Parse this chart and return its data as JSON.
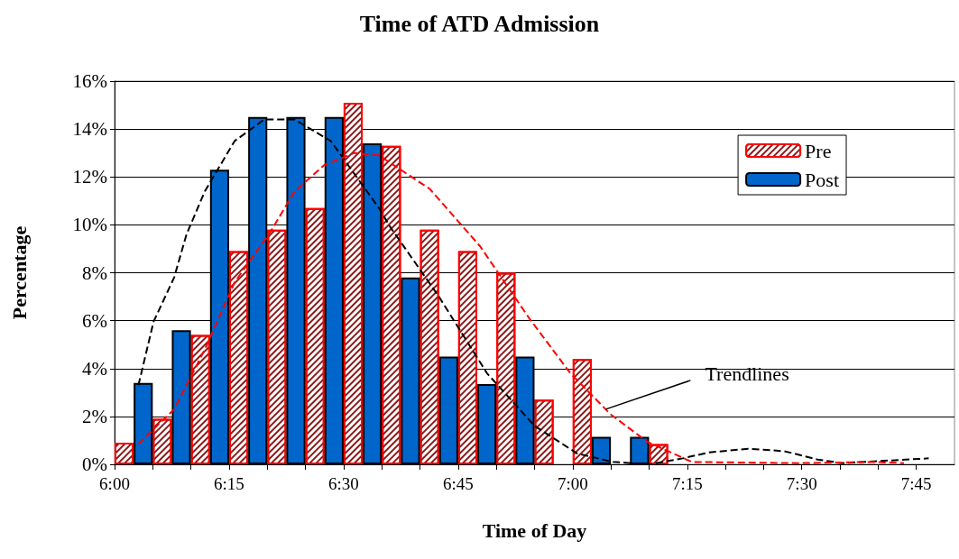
{
  "chart_data": {
    "type": "bar",
    "title": "Time of ATD Admission",
    "xlabel": "Time of Day",
    "ylabel": "Percentage",
    "xlim": [
      6,
      7.8333
    ],
    "xticks": [
      {
        "value": 6,
        "label": "6:00"
      },
      {
        "value": 6.0833,
        "label": null
      },
      {
        "value": 6.1667,
        "label": null
      },
      {
        "value": 6.25,
        "label": "6:15"
      },
      {
        "value": 6.3333,
        "label": null
      },
      {
        "value": 6.4167,
        "label": null
      },
      {
        "value": 6.5,
        "label": "6:30"
      },
      {
        "value": 6.5833,
        "label": null
      },
      {
        "value": 6.6667,
        "label": null
      },
      {
        "value": 6.75,
        "label": "6:45"
      },
      {
        "value": 6.8333,
        "label": null
      },
      {
        "value": 6.9167,
        "label": null
      },
      {
        "value": 7,
        "label": "7:00"
      },
      {
        "value": 7.0833,
        "label": null
      },
      {
        "value": 7.1667,
        "label": null
      },
      {
        "value": 7.25,
        "label": "7:15"
      },
      {
        "value": 7.3333,
        "label": null
      },
      {
        "value": 7.4167,
        "label": null
      },
      {
        "value": 7.5,
        "label": "7:30"
      },
      {
        "value": 7.5833,
        "label": null
      },
      {
        "value": 7.6667,
        "label": null
      },
      {
        "value": 7.75,
        "label": "7:45"
      }
    ],
    "ylim": [
      0,
      16
    ],
    "yticks": [
      {
        "value": 0,
        "label": "0%"
      },
      {
        "value": 2,
        "label": "2%"
      },
      {
        "value": 4,
        "label": "4%"
      },
      {
        "value": 6,
        "label": "6%"
      },
      {
        "value": 8,
        "label": "8%"
      },
      {
        "value": 10,
        "label": "10%"
      },
      {
        "value": 12,
        "label": "12%"
      },
      {
        "value": 14,
        "label": "14%"
      },
      {
        "value": 16,
        "label": "16%"
      }
    ],
    "grid": "y",
    "legend": "top right",
    "line_style": "dashed",
    "marker": "none",
    "series": [
      {
        "name": "Pre",
        "color": "#ff0000",
        "x": [
          6.0208,
          6.1042,
          6.1875,
          6.2708,
          6.3542,
          6.4375,
          6.5208,
          6.6042,
          6.6875,
          6.7708,
          6.8542,
          6.9375,
          7.0208,
          7.1875
        ],
        "values": [
          0.9,
          1.9,
          5.4,
          8.9,
          9.8,
          10.7,
          15.1,
          13.3,
          9.8,
          8.9,
          8.0,
          2.7,
          4.4,
          0.85
        ]
      },
      {
        "name": "Post",
        "color": "#0066cc",
        "x": [
          6.0625,
          6.1458,
          6.2292,
          6.3125,
          6.3958,
          6.4792,
          6.5625,
          6.6458,
          6.7292,
          6.8125,
          6.8958,
          7.0625,
          7.1458
        ],
        "values": [
          3.4,
          5.6,
          12.3,
          14.5,
          14.5,
          14.5,
          13.4,
          7.8,
          4.5,
          3.35,
          4.5,
          1.15,
          1.15
        ]
      },
      {
        "type": "line",
        "color": "#000000",
        "x": [
          6.052,
          6.085,
          6.13,
          6.157,
          6.197,
          6.262,
          6.327,
          6.393,
          6.472,
          6.577,
          6.602,
          6.708,
          6.813,
          6.917,
          7.01,
          7.088,
          7.167,
          7.24,
          7.298,
          7.383,
          7.462,
          7.535,
          7.587,
          7.777
        ],
        "values": [
          3.3,
          5.95,
          7.8,
          9.6,
          11.4,
          13.5,
          14.4,
          14.4,
          13.5,
          10.7,
          9.9,
          7.0,
          3.8,
          1.6,
          0.45,
          0.1,
          0,
          0.25,
          0.5,
          0.65,
          0.55,
          0.2,
          0.05,
          0.25
        ]
      },
      {
        "type": "line",
        "color": "#ff0000",
        "x": [
          6.052,
          6.13,
          6.197,
          6.262,
          6.34,
          6.393,
          6.458,
          6.523,
          6.577,
          6.688,
          6.798,
          6.905,
          6.995,
          7.082,
          7.162,
          7.26,
          7.495,
          7.653,
          7.723
        ],
        "values": [
          0.85,
          2.3,
          4.8,
          7.6,
          9.7,
          11.4,
          12.5,
          13.0,
          12.9,
          11.5,
          9.1,
          6.1,
          3.8,
          2.1,
          0.95,
          0.1,
          0.05,
          0.1,
          0.05
        ]
      }
    ],
    "annotations": [
      {
        "text": "Trendlines",
        "x": 7.072,
        "y": 2.3
      }
    ]
  }
}
